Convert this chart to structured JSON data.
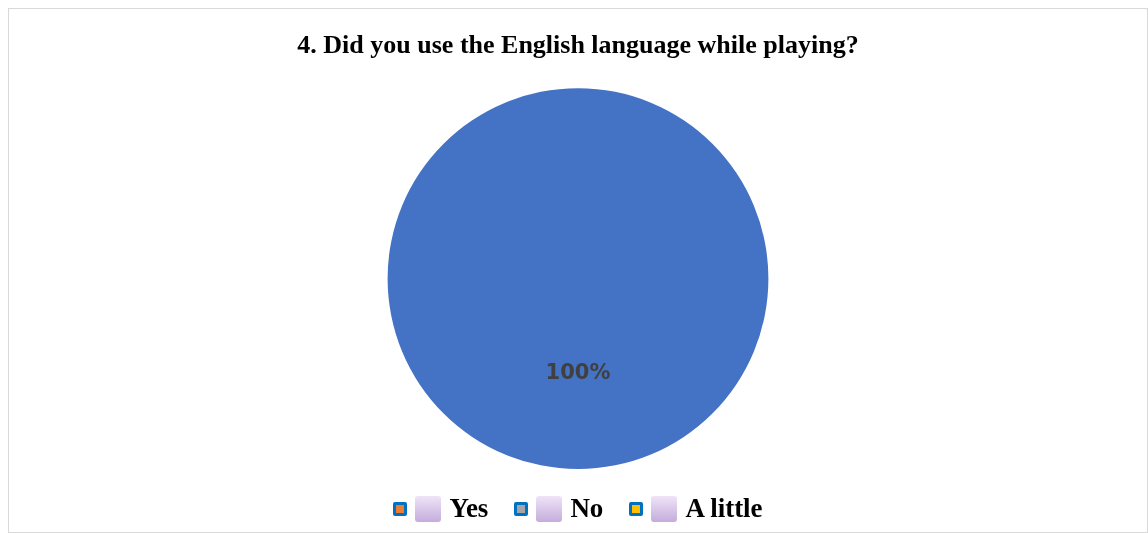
{
  "chart_data": {
    "type": "pie",
    "title": "4. Did you use the English language while playing?",
    "categories": [
      null,
      "Yes",
      "No",
      "A little"
    ],
    "values": [
      100,
      0,
      0,
      0
    ],
    "colors": [
      "#4472c4",
      "#ed7d31",
      "#a5a5a5",
      "#ffc000"
    ],
    "value_labels": [
      "100%",
      null,
      null,
      null
    ],
    "legend": "bottom"
  }
}
